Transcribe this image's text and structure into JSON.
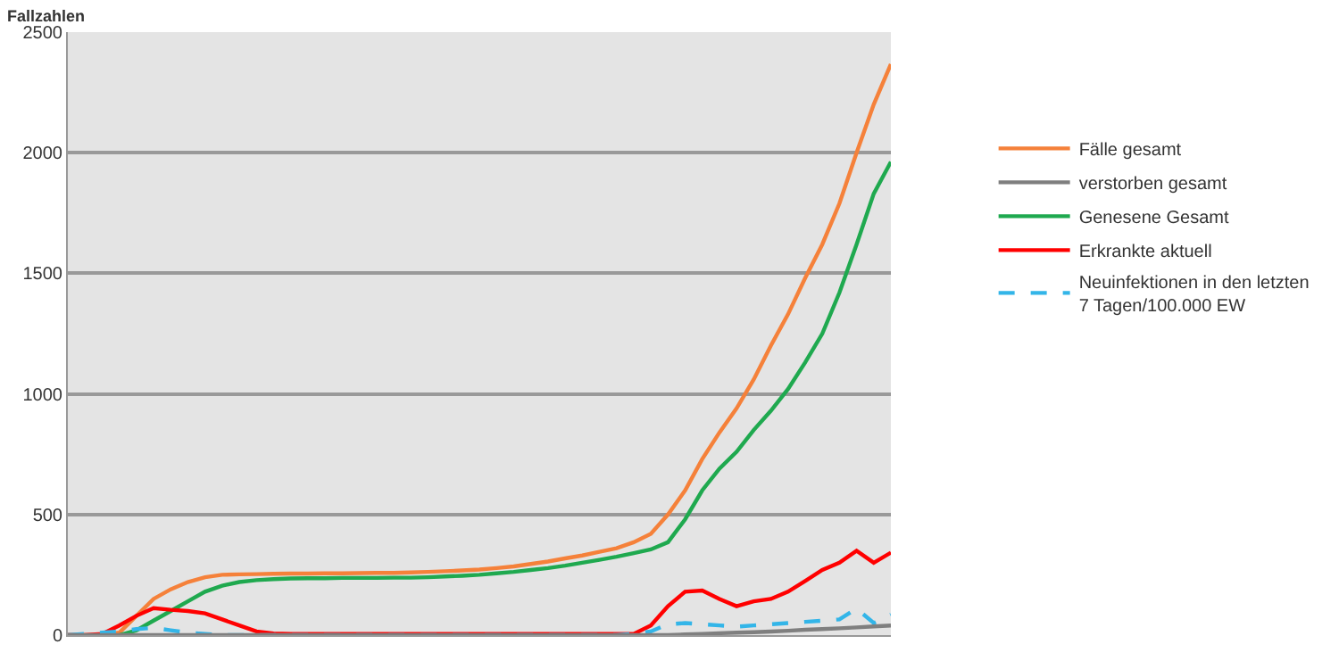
{
  "chart_data": {
    "type": "line",
    "ylabel": "Fallzahlen",
    "categories": [
      null,
      null,
      null,
      null,
      null,
      null,
      null,
      null,
      null,
      null,
      null,
      null,
      null,
      null,
      null,
      null,
      null,
      null,
      null,
      null,
      null,
      null,
      null,
      null,
      null,
      null,
      null,
      null,
      null,
      null,
      null,
      null,
      null,
      null,
      null,
      null,
      null,
      null,
      null,
      null,
      null,
      null,
      null,
      null,
      null,
      null,
      null,
      null,
      null
    ],
    "series": [
      {
        "name": "Fälle gesamt",
        "color": "#f5813a",
        "values": [
          0,
          0,
          0,
          10,
          80,
          150,
          190,
          220,
          240,
          250,
          252,
          253,
          254,
          255,
          255,
          256,
          256,
          257,
          258,
          258,
          260,
          262,
          265,
          268,
          272,
          278,
          285,
          295,
          305,
          318,
          330,
          345,
          360,
          385,
          420,
          500,
          600,
          730,
          840,
          940,
          1060,
          1200,
          1330,
          1480,
          1620,
          1790,
          2000,
          2200,
          2367
        ]
      },
      {
        "name": "verstorben gesamt",
        "color": "#7f7f7f",
        "values": [
          0,
          0,
          0,
          0,
          0,
          0,
          0,
          0,
          0,
          0,
          0,
          0,
          0,
          0,
          0,
          0,
          0,
          0,
          0,
          0,
          0,
          0,
          0,
          0,
          0,
          0,
          0,
          0,
          0,
          0,
          0,
          0,
          0,
          0,
          0,
          0,
          3,
          5,
          8,
          10,
          12,
          15,
          18,
          22,
          25,
          28,
          32,
          36,
          40
        ]
      },
      {
        "name": "Genesene Gesamt",
        "color": "#1fa94f",
        "values": [
          null,
          null,
          null,
          0,
          20,
          60,
          100,
          140,
          180,
          205,
          220,
          228,
          232,
          235,
          236,
          236,
          237,
          237,
          237,
          238,
          238,
          240,
          243,
          246,
          250,
          256,
          262,
          270,
          278,
          288,
          300,
          312,
          325,
          340,
          355,
          385,
          480,
          600,
          690,
          760,
          850,
          930,
          1020,
          1130,
          1250,
          1420,
          1620,
          1830,
          1962
        ]
      },
      {
        "name": "Erkrankte aktuell",
        "color": "#ff0000",
        "values": [
          0,
          0,
          5,
          40,
          80,
          112,
          105,
          100,
          90,
          65,
          40,
          15,
          7,
          5,
          5,
          5,
          5,
          5,
          5,
          5,
          5,
          5,
          5,
          5,
          5,
          5,
          5,
          5,
          5,
          5,
          5,
          5,
          5,
          5,
          40,
          120,
          180,
          185,
          150,
          120,
          140,
          150,
          180,
          224,
          270,
          300,
          350,
          300,
          342
        ]
      },
      {
        "name": "Neuinfektionen in den letzten 7 Tagen/100.000 EW",
        "color": "#33b5e8",
        "line_style": "dashed",
        "values": [
          0,
          5,
          10,
          15,
          25,
          30,
          20,
          10,
          5,
          0,
          0,
          0,
          0,
          0,
          0,
          0,
          0,
          0,
          0,
          0,
          0,
          0,
          0,
          0,
          0,
          0,
          0,
          0,
          0,
          0,
          0,
          0,
          0,
          5,
          15,
          45,
          50,
          45,
          40,
          35,
          40,
          45,
          50,
          55,
          60,
          65,
          110,
          50,
          84
        ]
      }
    ],
    "ylim": [
      0,
      2500
    ],
    "yticks": [
      0,
      500,
      1000,
      1500,
      2000,
      2500
    ],
    "grid": "y",
    "legend": "right",
    "marker": "none"
  }
}
